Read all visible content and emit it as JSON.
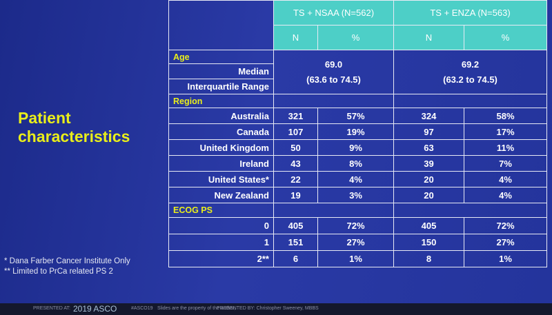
{
  "title_lines": [
    "Patient",
    "characteristics"
  ],
  "notes": [
    "* Dana Farber Cancer Institute Only",
    "** Limited to PrCa related PS 2"
  ],
  "header": {
    "group1": "TS + NSAA (N=562)",
    "group2": "TS + ENZA (N=563)",
    "n_label": "N",
    "pct_label": "%"
  },
  "age": {
    "section": "Age",
    "median_label": "Median",
    "median_g1": "69.0",
    "median_g2": "69.2",
    "iqr_label": "Interquartile Range",
    "iqr_g1": "(63.6 to 74.5)",
    "iqr_g2": "(63.2 to 74.5)"
  },
  "region": {
    "section": "Region",
    "rows": [
      {
        "label": "Australia",
        "n1": "321",
        "p1": "57%",
        "n2": "324",
        "p2": "58%"
      },
      {
        "label": "Canada",
        "n1": "107",
        "p1": "19%",
        "n2": "97",
        "p2": "17%"
      },
      {
        "label": "United Kingdom",
        "n1": "50",
        "p1": "9%",
        "n2": "63",
        "p2": "11%"
      },
      {
        "label": "Ireland",
        "n1": "43",
        "p1": "8%",
        "n2": "39",
        "p2": "7%"
      },
      {
        "label": "United States*",
        "n1": "22",
        "p1": "4%",
        "n2": "20",
        "p2": "4%"
      },
      {
        "label": "New Zealand",
        "n1": "19",
        "p1": "3%",
        "n2": "20",
        "p2": "4%"
      }
    ]
  },
  "ecog": {
    "section": "ECOG PS",
    "rows": [
      {
        "label": "0",
        "n1": "405",
        "p1": "72%",
        "n2": "405",
        "p2": "72%"
      },
      {
        "label": "1",
        "n1": "151",
        "p1": "27%",
        "n2": "150",
        "p2": "27%"
      },
      {
        "label": "2**",
        "n1": "6",
        "p1": "1%",
        "n2": "8",
        "p2": "1%"
      }
    ]
  },
  "footer": {
    "presented_at": "PRESENTED AT:",
    "meeting": "2019 ASCO",
    "hashtag": "#ASCO19",
    "hashtag_note": "Slides are the property of the author,",
    "presented_by": "PRESENTED BY: Christopher Sweeney, MBBS"
  }
}
